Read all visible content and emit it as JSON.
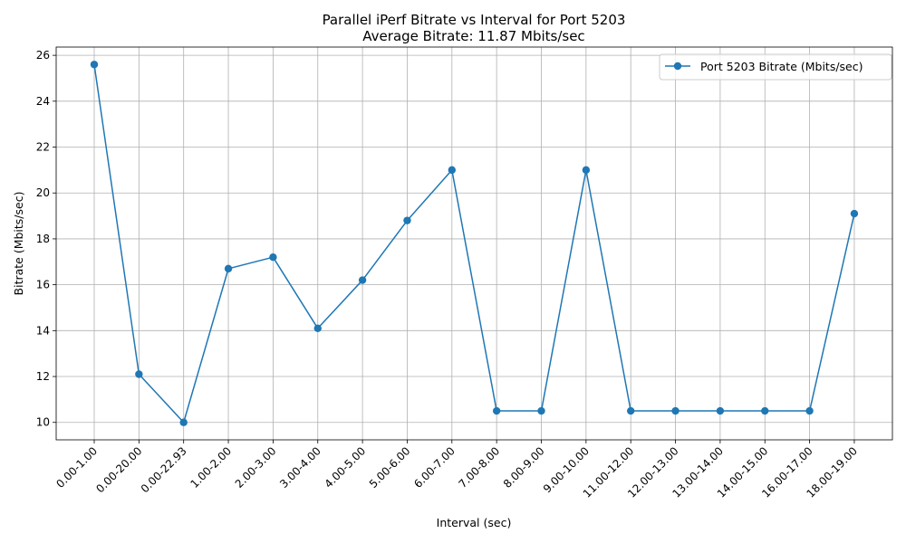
{
  "chart_data": {
    "type": "line",
    "title": "Parallel iPerf Bitrate vs Interval for Port 5203",
    "subtitle": "Average Bitrate: 11.87 Mbits/sec",
    "xlabel": "Interval (sec)",
    "ylabel": "Bitrate (Mbits/sec)",
    "categories": [
      "0.00-1.00",
      "0.00-20.00",
      "0.00-22.93",
      "1.00-2.00",
      "2.00-3.00",
      "3.00-4.00",
      "4.00-5.00",
      "5.00-6.00",
      "6.00-7.00",
      "7.00-8.00",
      "8.00-9.00",
      "9.00-10.00",
      "11.00-12.00",
      "12.00-13.00",
      "13.00-14.00",
      "14.00-15.00",
      "16.00-17.00",
      "18.00-19.00"
    ],
    "series": [
      {
        "name": "Port 5203 Bitrate (Mbits/sec)",
        "color": "#1f77b4",
        "marker": "circle",
        "values": [
          25.6,
          12.1,
          10.0,
          16.7,
          17.2,
          14.1,
          16.2,
          18.8,
          21.0,
          10.5,
          10.5,
          21.0,
          10.5,
          10.5,
          10.5,
          10.5,
          10.5,
          19.1
        ]
      }
    ],
    "ylim": [
      9.24,
      26.36
    ],
    "yticks": [
      10,
      12,
      14,
      16,
      18,
      20,
      22,
      24,
      26
    ],
    "grid": true,
    "legend_position": "top-right"
  }
}
